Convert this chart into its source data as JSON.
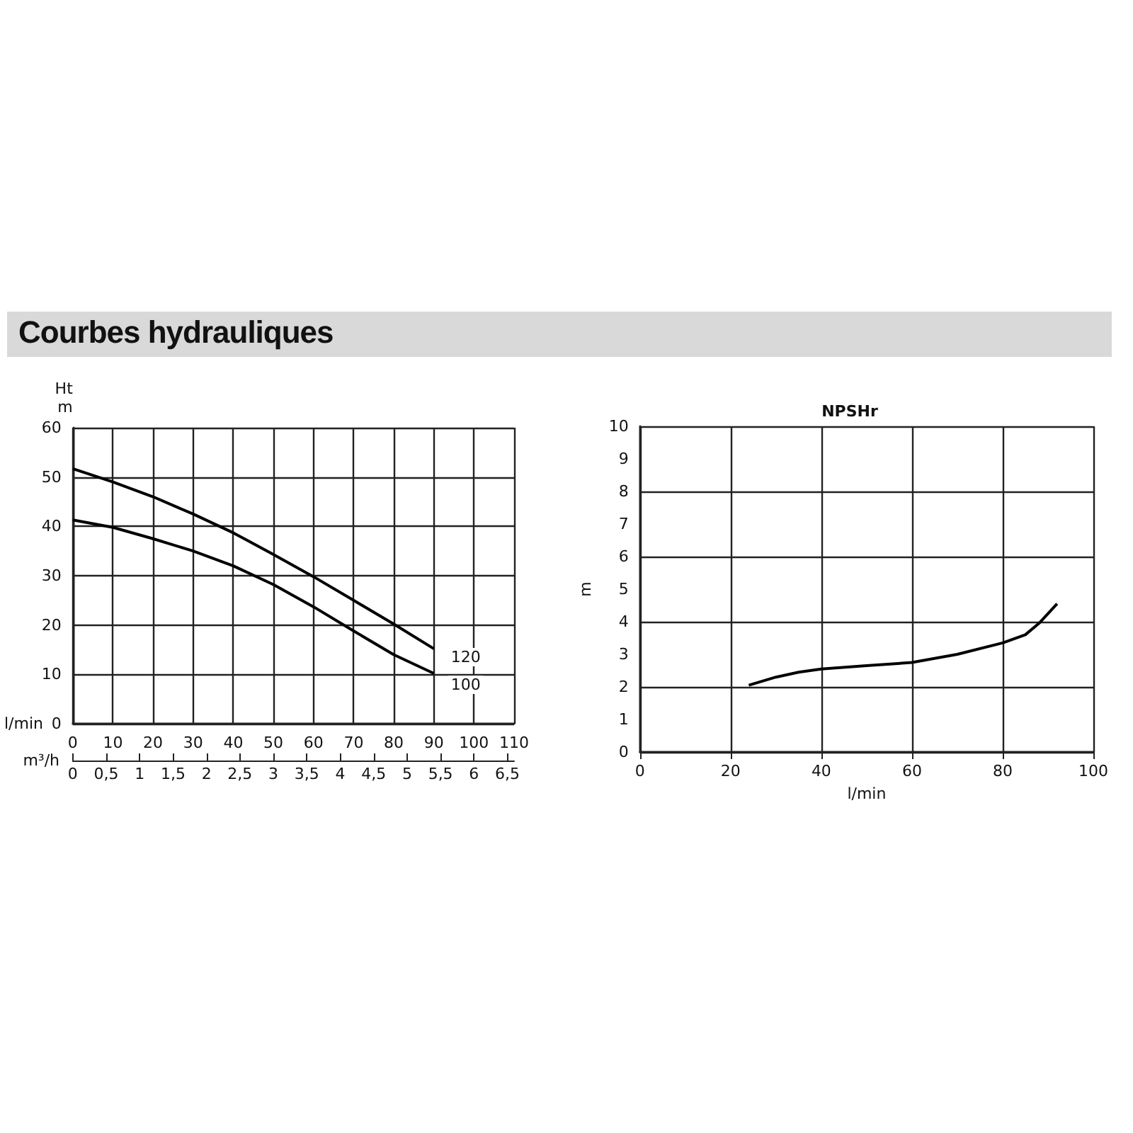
{
  "chart_data": [
    {
      "type": "line",
      "title": "Courbes hydrauliques",
      "xlabel": "l/min",
      "x2label": "m³/h",
      "ylabel": "Ht\nm",
      "x": [
        0,
        10,
        20,
        30,
        40,
        50,
        60,
        70,
        80,
        90
      ],
      "series": [
        {
          "name": "120",
          "color": "#000000",
          "values": [
            51.7,
            49,
            46,
            42.5,
            38.7,
            34.3,
            29.8,
            25,
            20.2,
            15.2
          ]
        },
        {
          "name": "100",
          "color": "#000000",
          "values": [
            41.3,
            39.8,
            37.5,
            35,
            32,
            28.2,
            23.7,
            18.8,
            14,
            10.2
          ]
        }
      ],
      "xlim": [
        0,
        110
      ],
      "xticks": [
        0,
        10,
        20,
        30,
        40,
        50,
        60,
        70,
        80,
        90,
        100,
        110
      ],
      "x2lim": [
        0,
        6.6
      ],
      "x2ticks": [
        0,
        {
          "value": 0.5,
          "label": "0,5"
        },
        1,
        {
          "value": 1.5,
          "label": "1,5"
        },
        2,
        {
          "value": 2.5,
          "label": "2,5"
        },
        3,
        {
          "value": 3.5,
          "label": "3,5"
        },
        4,
        {
          "value": 4.5,
          "label": "4,5"
        },
        5,
        {
          "value": 5.5,
          "label": "5,5"
        },
        6,
        {
          "value": 6.5,
          "label": "6,5"
        }
      ],
      "ylim": [
        0,
        60
      ],
      "yticks": [
        0,
        10,
        20,
        30,
        40,
        50,
        60
      ],
      "grid": true,
      "marker": "none"
    },
    {
      "type": "line",
      "title": "NPSHr",
      "xlabel": "l/min",
      "ylabel": "m",
      "x": [
        24,
        30,
        35,
        40,
        50,
        60,
        70,
        80,
        85,
        88,
        92
      ],
      "series": [
        {
          "color": "#000000",
          "values": [
            2.05,
            2.3,
            2.45,
            2.55,
            2.65,
            2.75,
            3.0,
            3.35,
            3.6,
            3.95,
            4.55
          ]
        }
      ],
      "xlim": [
        0,
        100
      ],
      "xticks": [
        0,
        20,
        40,
        60,
        80,
        100
      ],
      "ylim": [
        0,
        10
      ],
      "yticks": [
        0,
        1,
        2,
        3,
        4,
        5,
        6,
        7,
        8,
        9,
        10
      ],
      "grid": true,
      "marker": "none"
    }
  ]
}
